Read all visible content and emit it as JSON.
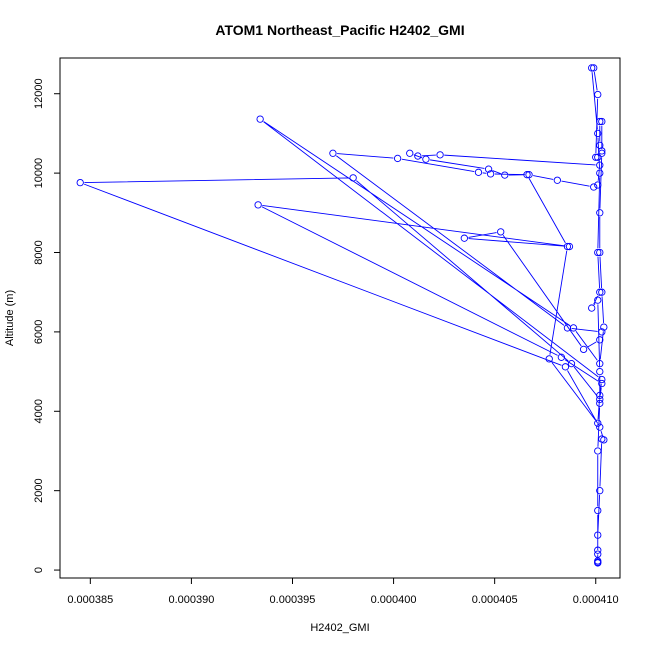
{
  "chart_data": {
    "type": "scatter",
    "title": "ATOM1 Northeast_Pacific H2402_GMI",
    "xlabel": "H2402_GMI",
    "ylabel": "Altitude (m)",
    "xlim": [
      0.0003835,
      0.0004112
    ],
    "ylim": [
      -200,
      12900
    ],
    "x_ticks": [
      0.000385,
      0.00039,
      0.000395,
      0.0004,
      0.000405,
      0.00041
    ],
    "x_tick_labels": [
      "0.000385",
      "0.000390",
      "0.000395",
      "0.000400",
      "0.000405",
      "0.000410"
    ],
    "y_ticks": [
      0,
      2000,
      4000,
      6000,
      8000,
      10000,
      12000
    ],
    "y_tick_labels": [
      "0",
      "2000",
      "4000",
      "6000",
      "8000",
      "10000",
      "12000"
    ],
    "grid": false,
    "connect_points": true,
    "series": [
      {
        "color": "#0000ff",
        "points": [
          [
            0.0004101,
            200
          ],
          [
            0.0004101,
            230
          ],
          [
            0.0004101,
            400
          ],
          [
            0.0004101,
            880
          ],
          [
            0.0004102,
            2000
          ],
          [
            0.0004103,
            3300
          ],
          [
            0.0004104,
            3280
          ],
          [
            0.0004102,
            3600
          ],
          [
            0.0004085,
            5120
          ],
          [
            0.0003845,
            9760
          ],
          [
            0.000398,
            9880
          ],
          [
            0.0004088,
            5200
          ],
          [
            0.0004102,
            4300
          ],
          [
            0.0004103,
            4700
          ],
          [
            0.0004083,
            5360
          ],
          [
            0.0003933,
            9200
          ],
          [
            0.0004087,
            8150
          ],
          [
            0.0004035,
            8360
          ],
          [
            0.0004053,
            8520
          ],
          [
            0.0004094,
            5560
          ],
          [
            0.0004102,
            5800
          ],
          [
            0.0004103,
            6000
          ],
          [
            0.0004086,
            6100
          ],
          [
            0.000397,
            10500
          ],
          [
            0.0004002,
            10370
          ],
          [
            0.0004042,
            10020
          ],
          [
            0.0004048,
            9980
          ],
          [
            0.0004067,
            9960
          ],
          [
            0.0004081,
            9820
          ],
          [
            0.0004099,
            9650
          ],
          [
            0.0004101,
            9700
          ],
          [
            0.0004102,
            10200
          ],
          [
            0.0004023,
            10460
          ],
          [
            0.0004012,
            10430
          ],
          [
            0.0004008,
            10500
          ],
          [
            0.0004016,
            10350
          ],
          [
            0.0004047,
            10100
          ],
          [
            0.0004055,
            9950
          ],
          [
            0.0004066,
            9960
          ],
          [
            0.0004086,
            8150
          ],
          [
            0.0004077,
            5320
          ],
          [
            0.0004101,
            3700
          ],
          [
            0.0004102,
            4400
          ],
          [
            0.0004103,
            4800
          ],
          [
            0.0003934,
            11360
          ],
          [
            0.0004089,
            6100
          ],
          [
            0.0004102,
            5200
          ],
          [
            0.0004104,
            6120
          ],
          [
            0.0004103,
            7000
          ],
          [
            0.0004102,
            8000
          ],
          [
            0.0004102,
            9000
          ],
          [
            0.0004103,
            10500
          ],
          [
            0.0004103,
            11300
          ],
          [
            0.0004102,
            11300
          ],
          [
            0.0004102,
            10700
          ],
          [
            0.0004103,
            10560
          ],
          [
            0.0004101,
            10400
          ],
          [
            0.00041,
            10400
          ],
          [
            0.0004101,
            11980
          ],
          [
            0.0004099,
            12650
          ],
          [
            0.0004098,
            12650
          ],
          [
            0.0004101,
            11000
          ],
          [
            0.0004102,
            10000
          ],
          [
            0.0004101,
            8000
          ],
          [
            0.0004102,
            7000
          ],
          [
            0.0004098,
            6600
          ],
          [
            0.0004101,
            6800
          ],
          [
            0.0004102,
            5000
          ],
          [
            0.0004102,
            4200
          ],
          [
            0.0004101,
            3000
          ],
          [
            0.0004101,
            1500
          ],
          [
            0.0004101,
            500
          ],
          [
            0.0004101,
            180
          ]
        ]
      }
    ]
  }
}
